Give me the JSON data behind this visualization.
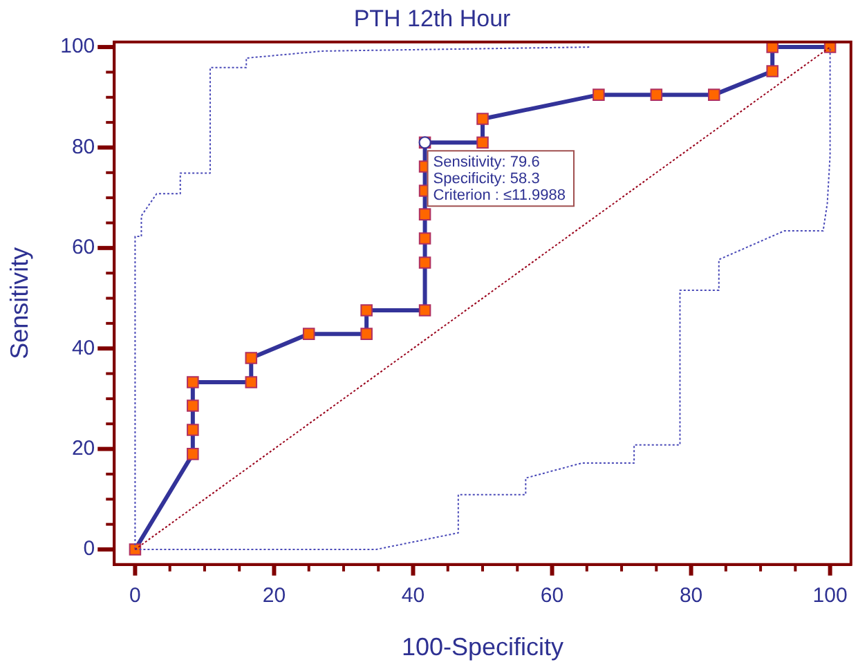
{
  "chart_data": {
    "type": "line",
    "title": "PTH 12th Hour",
    "xlabel": "100-Specificity",
    "ylabel": "Sensitivity",
    "xlim": [
      -3,
      103
    ],
    "ylim": [
      -3,
      101
    ],
    "xticks": [
      0,
      {
        "value": 5,
        "label": null
      },
      {
        "value": 10,
        "label": null
      },
      {
        "value": 15,
        "label": null
      },
      20,
      {
        "value": 25,
        "label": null
      },
      {
        "value": 30,
        "label": null
      },
      {
        "value": 35,
        "label": null
      },
      40,
      {
        "value": 45,
        "label": null
      },
      {
        "value": 50,
        "label": null
      },
      {
        "value": 55,
        "label": null
      },
      60,
      {
        "value": 65,
        "label": null
      },
      {
        "value": 70,
        "label": null
      },
      {
        "value": 75,
        "label": null
      },
      80,
      {
        "value": 85,
        "label": null
      },
      {
        "value": 90,
        "label": null
      },
      {
        "value": 95,
        "label": null
      },
      100
    ],
    "yticks": [
      0,
      {
        "value": 5,
        "label": null
      },
      {
        "value": 10,
        "label": null
      },
      {
        "value": 15,
        "label": null
      },
      20,
      {
        "value": 25,
        "label": null
      },
      {
        "value": 30,
        "label": null
      },
      {
        "value": 35,
        "label": null
      },
      40,
      {
        "value": 45,
        "label": null
      },
      {
        "value": 50,
        "label": null
      },
      {
        "value": 55,
        "label": null
      },
      60,
      {
        "value": 65,
        "label": null
      },
      {
        "value": 70,
        "label": null
      },
      {
        "value": 75,
        "label": null
      },
      80,
      {
        "value": 85,
        "label": null
      },
      {
        "value": 90,
        "label": null
      },
      {
        "value": 95,
        "label": null
      },
      100
    ],
    "grid": false,
    "legend": false,
    "annotations": [
      "Sensitivity: 79.6",
      "Specificity: 58.3",
      "Criterion : ≤11.9988"
    ],
    "series": [
      {
        "type": "line",
        "color": "#99001a",
        "line_style": "dotted",
        "marker": "none",
        "x": [
          0,
          100
        ],
        "values": [
          0,
          100
        ]
      },
      {
        "type": "line",
        "color": "#4a4ab8",
        "line_style": "dotted",
        "marker": "none",
        "x": [
          0,
          0,
          0.9,
          0.9,
          3.1,
          6.5,
          6.5,
          10.8,
          10.8,
          16,
          16,
          27,
          65.6
        ],
        "values": [
          0,
          62.3,
          62.3,
          66.4,
          70.8,
          70.8,
          74.9,
          74.9,
          95.9,
          95.9,
          97.8,
          99.2,
          100
        ]
      },
      {
        "type": "line",
        "color": "#4a4ab8",
        "line_style": "dotted",
        "marker": "none",
        "x": [
          0,
          34.7,
          46.5,
          46.5,
          56.2,
          56.2,
          64.3,
          71.8,
          71.8,
          78.4,
          78.4,
          84,
          84,
          93.4,
          99,
          99.6,
          100,
          100
        ],
        "values": [
          0,
          0,
          3.3,
          10.9,
          10.9,
          14.2,
          17.2,
          17.2,
          20.8,
          20.8,
          51.6,
          51.6,
          57.7,
          63.4,
          63.4,
          68.9,
          78.4,
          100
        ]
      },
      {
        "type": "line",
        "color": "#333399",
        "line_style": "solid",
        "marker": "square",
        "x": [
          0,
          8.3,
          8.3,
          8.3,
          8.3,
          16.7,
          16.7,
          25,
          33.3,
          33.3,
          41.7,
          41.7,
          41.7,
          41.7,
          41.7,
          41.7,
          41.7,
          50,
          50,
          66.7,
          75,
          83.3,
          91.7,
          91.7,
          100
        ],
        "values": [
          0,
          19.0,
          23.8,
          28.6,
          33.3,
          33.3,
          38.1,
          42.9,
          42.9,
          47.6,
          47.6,
          57.1,
          61.9,
          66.7,
          71.4,
          76.2,
          81.0,
          81.0,
          85.7,
          90.5,
          90.5,
          90.5,
          95.2,
          100,
          100
        ],
        "colors": [
          "#ff6600",
          "#ff6600",
          "#ff6600",
          "#ff6600",
          "#ff6600",
          "#ff6600",
          "#ff6600",
          "#ff6600",
          "#ff6600",
          "#ff6600",
          "#ff6600",
          "#ff6600",
          "#ff6600",
          "#ff6600",
          "#ff6600",
          "#ff6600",
          "#ff6600",
          "#ff6600",
          "#ff6600",
          "#ff6600",
          "#ff6600",
          "#ff6600",
          "#ff6600",
          "#ff6600",
          "#ff6600"
        ]
      },
      {
        "type": "scatter",
        "color": "#333399",
        "marker": "circle",
        "x": [
          41.7
        ],
        "values": [
          81.0
        ]
      }
    ]
  }
}
